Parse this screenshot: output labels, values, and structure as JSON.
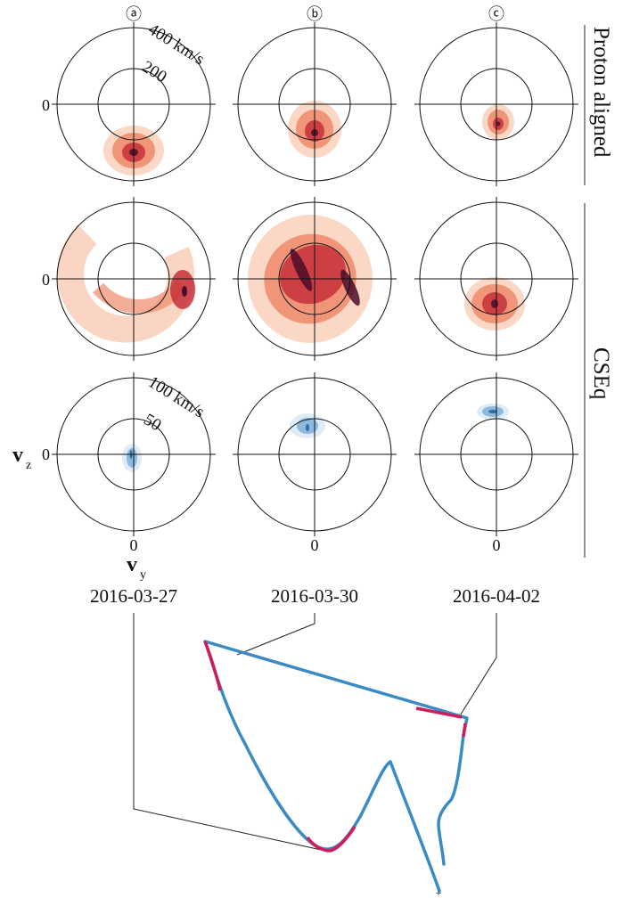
{
  "columns": [
    {
      "label": "ⓐ",
      "date": "2016-03-27"
    },
    {
      "label": "ⓑ",
      "date": "2016-03-30"
    },
    {
      "label": "ⓒ",
      "date": "2016-04-02"
    }
  ],
  "rows": [
    {
      "title": "Proton aligned",
      "outer_label": "400 km/s",
      "inner_label": "200",
      "palette": "red"
    },
    {
      "title": "",
      "outer_label": "",
      "inner_label": "",
      "palette": "red"
    },
    {
      "title": "CSEq",
      "outer_label": "100 km/s",
      "inner_label": "50",
      "palette": "blue"
    }
  ],
  "side_labels": {
    "proton": "Proton aligned",
    "cseq": "CSEq"
  },
  "axis": {
    "zero": "0",
    "vz": "v",
    "vz_sub": "z",
    "vy": "v",
    "vy_sub": "y"
  },
  "colors": {
    "red_light": "#fbd3c0",
    "red_mid": "#ef8a6a",
    "red_dark": "#c6303a",
    "red_core": "#4a0d28",
    "blue_light": "#dbe9f6",
    "blue_mid": "#7fb2d9",
    "blue_dark": "#1f5f9e",
    "trajectory": "#3a8bc4",
    "highlight": "#d01c5b"
  },
  "trajectory_marker": "+"
}
